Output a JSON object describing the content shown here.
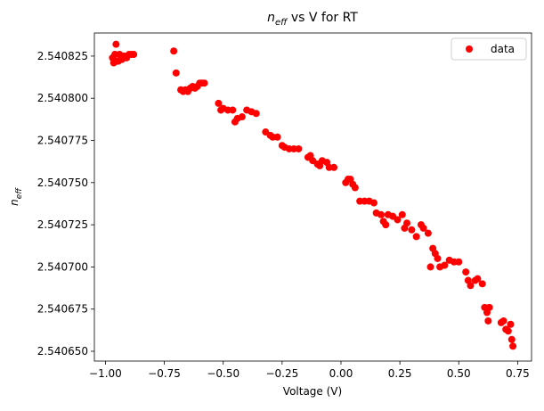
{
  "chart_data": {
    "type": "scatter",
    "title": {
      "symbol": "n",
      "subscript": "eff",
      "rest": " vs V for RT"
    },
    "xlabel": "Voltage (V)",
    "ylabel": {
      "symbol": "n",
      "subscript": "eff"
    },
    "legend": "upper right",
    "series": [
      {
        "name": "data",
        "color": "#ff0000",
        "x": [
          -0.97,
          -0.96,
          -0.955,
          -0.95,
          -0.94,
          -0.93,
          -0.92,
          -0.91,
          -0.9,
          -0.89,
          -0.88,
          -0.965,
          -0.945,
          -0.71,
          -0.7,
          -0.68,
          -0.67,
          -0.66,
          -0.65,
          -0.64,
          -0.63,
          -0.62,
          -0.61,
          -0.6,
          -0.59,
          -0.58,
          -0.52,
          -0.51,
          -0.5,
          -0.48,
          -0.46,
          -0.45,
          -0.44,
          -0.42,
          -0.4,
          -0.38,
          -0.36,
          -0.32,
          -0.3,
          -0.29,
          -0.27,
          -0.25,
          -0.24,
          -0.22,
          -0.2,
          -0.18,
          -0.14,
          -0.13,
          -0.12,
          -0.1,
          -0.09,
          -0.08,
          -0.06,
          -0.05,
          -0.03,
          0.02,
          0.03,
          0.04,
          0.05,
          0.06,
          0.08,
          0.1,
          0.12,
          0.14,
          0.15,
          0.17,
          0.18,
          0.19,
          0.2,
          0.22,
          0.24,
          0.26,
          0.27,
          0.28,
          0.3,
          0.32,
          0.34,
          0.35,
          0.37,
          0.38,
          0.39,
          0.4,
          0.41,
          0.42,
          0.44,
          0.46,
          0.48,
          0.5,
          0.53,
          0.54,
          0.55,
          0.57,
          0.58,
          0.6,
          0.61,
          0.62,
          0.63,
          0.625,
          0.68,
          0.69,
          0.7,
          0.71,
          0.72,
          0.725,
          0.73
        ],
        "values": [
          2.540824,
          2.540826,
          2.540832,
          2.540822,
          2.540826,
          2.540823,
          2.540825,
          2.540824,
          2.540826,
          2.540826,
          2.540826,
          2.540821,
          2.540822,
          2.540828,
          2.540815,
          2.540805,
          2.540804,
          2.540805,
          2.540804,
          2.540806,
          2.540807,
          2.540806,
          2.540807,
          2.540809,
          2.540809,
          2.540809,
          2.540797,
          2.540793,
          2.540794,
          2.540793,
          2.540793,
          2.540786,
          2.540788,
          2.540789,
          2.540793,
          2.540792,
          2.540791,
          2.54078,
          2.540778,
          2.540777,
          2.540777,
          2.540772,
          2.540771,
          2.54077,
          2.54077,
          2.54077,
          2.540765,
          2.540766,
          2.540763,
          2.540761,
          2.54076,
          2.540763,
          2.540762,
          2.540759,
          2.540759,
          2.54075,
          2.540752,
          2.540752,
          2.540749,
          2.540747,
          2.540739,
          2.540739,
          2.540739,
          2.540738,
          2.540732,
          2.540731,
          2.540727,
          2.540725,
          2.540731,
          2.54073,
          2.540728,
          2.540731,
          2.540723,
          2.540726,
          2.540722,
          2.540718,
          2.540725,
          2.540723,
          2.54072,
          2.5407,
          2.540711,
          2.540708,
          2.540705,
          2.5407,
          2.540701,
          2.540704,
          2.540703,
          2.540703,
          2.540697,
          2.540692,
          2.540689,
          2.540692,
          2.540693,
          2.54069,
          2.540676,
          2.540673,
          2.540676,
          2.540668,
          2.540667,
          2.540668,
          2.540663,
          2.540662,
          2.540666,
          2.540657,
          2.540653
        ]
      }
    ],
    "xlim": [
      -1.047,
      0.809
    ],
    "ylim": [
      2.5406442,
      2.5408387
    ],
    "xticks": [
      {
        "value": -1,
        "label": "−1.00"
      },
      {
        "value": -0.75,
        "label": "−0.75"
      },
      {
        "value": -0.5,
        "label": "−0.50"
      },
      {
        "value": -0.25,
        "label": "−0.25"
      },
      {
        "value": 0,
        "label": "0.00"
      },
      {
        "value": 0.25,
        "label": "0.25"
      },
      {
        "value": 0.5,
        "label": "0.50"
      },
      {
        "value": 0.75,
        "label": "0.75"
      }
    ],
    "yticks": [
      {
        "value": 2.54065,
        "label": "2.540650"
      },
      2.540675,
      {
        "value": 2.5407,
        "label": "2.540700"
      },
      2.540725,
      {
        "value": 2.54075,
        "label": "2.540750"
      },
      2.540775,
      {
        "value": 2.5408,
        "label": "2.540800"
      },
      2.540825
    ]
  }
}
